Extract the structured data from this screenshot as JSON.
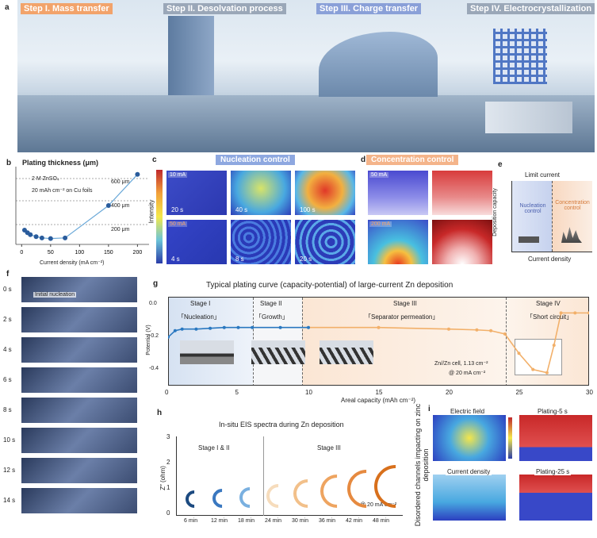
{
  "labels": {
    "a": "a",
    "b": "b",
    "c": "c",
    "d": "d",
    "e": "e",
    "f": "f",
    "g": "g",
    "h": "h",
    "i": "i"
  },
  "steps": [
    {
      "label": "Step I. Mass transfer",
      "color": "#f2a36b"
    },
    {
      "label": "Step II. Desolvation process",
      "color": "#9aa7b8"
    },
    {
      "label": "Step III. Charge transfer",
      "color": "#8aa0d8"
    },
    {
      "label": "Step IV. Electrocrystallization",
      "color": "#9aa7b8"
    }
  ],
  "panel_b": {
    "title": "Plating thickness (μm)",
    "legend": [
      "2 M ZnSO₄",
      "20 mAh cm⁻² on Cu foils"
    ],
    "levels": [
      "600 μm",
      "400 μm",
      "200 μm"
    ],
    "xlabel": "Current density (mA cm⁻²)",
    "xticks": [
      "0",
      "50",
      "100",
      "150",
      "200"
    ]
  },
  "panel_c": {
    "title": "Nucleation control",
    "ylabel": "Intensity",
    "currents": [
      "10 mA",
      "50 mA"
    ],
    "times_top": [
      "20 s",
      "40 s",
      "100 s"
    ],
    "times_bottom": [
      "4 s",
      "8 s",
      "20 s"
    ]
  },
  "panel_d": {
    "title": "Concentration control",
    "currents": [
      "50 mA",
      "200 mA"
    ]
  },
  "panel_e": {
    "top": "Limit current",
    "ylabel": "Deposition capacity",
    "xlabel": "Current density",
    "region1": "Nucleation control",
    "region2": "Concentration control"
  },
  "panel_f": {
    "note": "Initial nucleation",
    "times": [
      "0 s",
      "2 s",
      "4 s",
      "6 s",
      "8 s",
      "10 s",
      "12 s",
      "14 s"
    ]
  },
  "panel_g": {
    "title": "Typical plating curve (capacity-potential) of large-current Zn deposition",
    "ylabel": "Potential (V)",
    "xlabel": "Areal capacity (mAh cm⁻²)",
    "stages": [
      {
        "name": "Stage I",
        "desc": "「Nucleation」"
      },
      {
        "name": "Stage II",
        "desc": "「Growth」"
      },
      {
        "name": "Stage III",
        "desc": "「Separator permeation」"
      },
      {
        "name": "Stage IV",
        "desc": "「Short circuit」"
      }
    ],
    "cell": "Zn//Zn cell, 1.13 cm⁻²",
    "rate": "@ 20 mA cm⁻²",
    "xticks": [
      "0",
      "5",
      "10",
      "15",
      "20",
      "25",
      "30"
    ],
    "yticks": [
      "0.0",
      "-0.2",
      "-0.4"
    ]
  },
  "panel_h": {
    "title": "In-situ EIS spectra during Zn deposition",
    "ylabel": "Z″ (ohm)",
    "group1": "Stage I & II",
    "group2": "Stage III",
    "rate": "@ 20 mA cm⁻²",
    "times": [
      "6 min",
      "12 min",
      "18 min",
      "24 min",
      "30 min",
      "36 min",
      "42 min",
      "48 min"
    ],
    "yticks": [
      "3",
      "2",
      "1",
      "0"
    ]
  },
  "panel_i": {
    "side": "Disordered channels impacting on zinc deposition",
    "maps": [
      "Electric field",
      "Current density",
      "Plating-5 s",
      "Plating-25 s"
    ],
    "scale": "Intensity"
  },
  "chart_data": [
    {
      "type": "scatter",
      "title": "Plating thickness (μm)",
      "xlabel": "Current density (mA cm⁻²)",
      "ylabel": "",
      "x": [
        5,
        10,
        15,
        25,
        35,
        50,
        75,
        150,
        200
      ],
      "y": [
        210,
        190,
        175,
        160,
        150,
        145,
        150,
        400,
        640
      ],
      "xlim": [
        -10,
        220
      ]
    },
    {
      "type": "line",
      "title": "Typical plating curve (capacity-potential) of large-current Zn deposition",
      "xlabel": "Areal capacity (mAh cm⁻²)",
      "ylabel": "Potential (V)",
      "x": [
        0,
        0.5,
        1,
        2,
        3,
        4,
        5,
        6,
        8,
        10,
        15,
        20,
        22,
        23,
        24,
        25,
        26,
        27,
        27.5,
        28,
        29,
        30
      ],
      "y": [
        -0.2,
        -0.16,
        -0.15,
        -0.15,
        -0.145,
        -0.14,
        -0.14,
        -0.14,
        -0.14,
        -0.14,
        -0.14,
        -0.15,
        -0.155,
        -0.16,
        -0.18,
        -0.3,
        -0.4,
        -0.42,
        -0.25,
        -0.05,
        -0.05,
        -0.05
      ],
      "xlim": [
        0,
        30
      ],
      "ylim": [
        -0.5,
        0.05
      ]
    }
  ]
}
